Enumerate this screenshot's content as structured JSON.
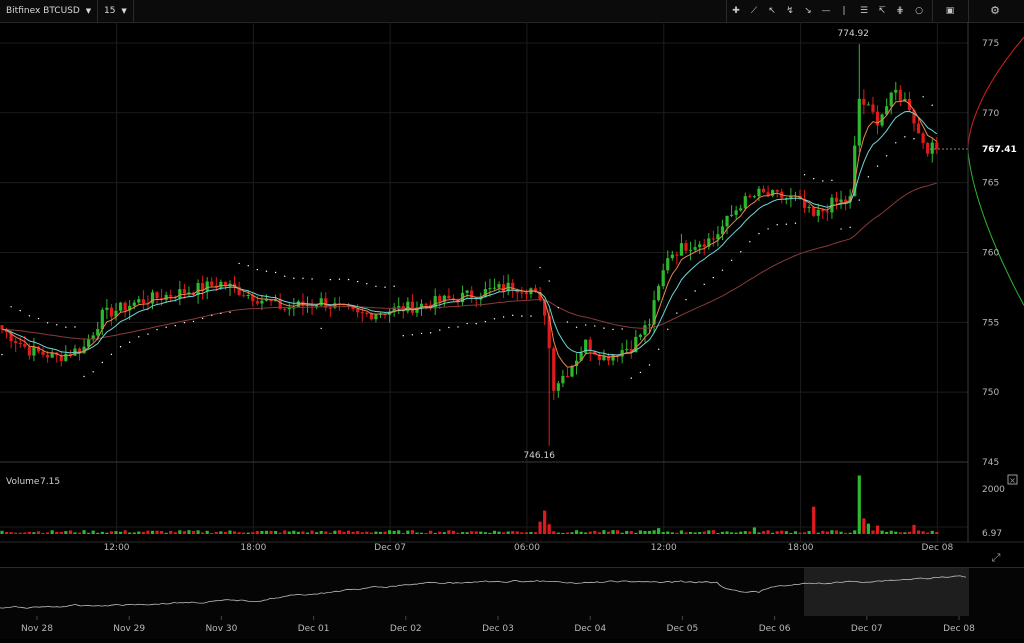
{
  "toolbar": {
    "symbol": "Bitfinex BTCUSD",
    "interval": "15",
    "tools": [
      "crosshair-icon",
      "trend-line-icon",
      "arrow-icon",
      "fork-icon",
      "long-arrow-icon",
      "horizontal-line-icon",
      "vertical-line-icon",
      "fib-lines-icon",
      "fan-icon",
      "pitchfork-icon",
      "circle-icon"
    ]
  },
  "volume_panel": {
    "label": "Volume",
    "value": "7.15",
    "close_icon": "close-icon"
  },
  "expand_icon": "expand-icon",
  "colors": {
    "up": "#2eb82e",
    "down": "#e01b1b",
    "ema_fast": "#e8874a",
    "ema_slow": "#6fd6d6",
    "sma_long": "#8a3a3a",
    "sar": "#ffffff",
    "grid": "#1c1c1c",
    "depth_bid": "#2db52d",
    "depth_ask": "#d32020"
  },
  "chart_data": [
    {
      "type": "candlestick",
      "title": "",
      "y_ticks": [
        745,
        750,
        755,
        760,
        765,
        770,
        775
      ],
      "ylim": [
        745,
        776.5
      ],
      "x_ticks": [
        "12:00",
        "18:00",
        "Dec 07",
        "06:00",
        "12:00",
        "18:00",
        "Dec 08"
      ],
      "last_price": "767.41",
      "high_label": "774.92",
      "low_label": "746.16",
      "anchors": [
        [
          0,
          754.5
        ],
        [
          6,
          753.0
        ],
        [
          12,
          752.5
        ],
        [
          18,
          753.2
        ],
        [
          22,
          755.5
        ],
        [
          30,
          756.5
        ],
        [
          40,
          757.2
        ],
        [
          48,
          757.8
        ],
        [
          54,
          757.0
        ],
        [
          62,
          756.0
        ],
        [
          70,
          756.5
        ],
        [
          78,
          755.5
        ],
        [
          88,
          756.0
        ],
        [
          96,
          756.5
        ],
        [
          106,
          757.2
        ],
        [
          112,
          757.6
        ],
        [
          116,
          757.4
        ],
        [
          119,
          755.8
        ],
        [
          121,
          750.5
        ],
        [
          124,
          751.5
        ],
        [
          128,
          753.5
        ],
        [
          132,
          752.5
        ],
        [
          138,
          753.3
        ],
        [
          142,
          755.0
        ],
        [
          146,
          759.8
        ],
        [
          150,
          760.5
        ],
        [
          156,
          761.0
        ],
        [
          162,
          763.5
        ],
        [
          166,
          764.2
        ],
        [
          170,
          764.0
        ],
        [
          174,
          763.8
        ],
        [
          178,
          762.5
        ],
        [
          182,
          763.5
        ],
        [
          186,
          763.8
        ],
        [
          188,
          771.0
        ],
        [
          192,
          769.5
        ],
        [
          196,
          771.5
        ],
        [
          199,
          770.5
        ],
        [
          201,
          768.5
        ],
        [
          203,
          767.5
        ],
        [
          205,
          767.41
        ]
      ],
      "series": [
        {
          "name": "",
          "type": "line",
          "color": "#e8874a"
        },
        {
          "name": "",
          "type": "line",
          "color": "#6fd6d6"
        },
        {
          "name": "",
          "type": "line",
          "color": "#8a3a3a"
        },
        {
          "name": "",
          "type": "dots",
          "color": "#ffffff"
        }
      ]
    },
    {
      "type": "bar",
      "title": "Volume",
      "y_ticks": [
        2000
      ],
      "last_value": "6.97",
      "spikes": [
        [
          118,
          1.9
        ],
        [
          119,
          3.6
        ],
        [
          120,
          1.5
        ],
        [
          178,
          4.2
        ],
        [
          188,
          9.0
        ],
        [
          189,
          2.4
        ],
        [
          190,
          1.6
        ],
        [
          192,
          1.3
        ],
        [
          200,
          1.4
        ],
        [
          165,
          1.0
        ],
        [
          144,
          0.9
        ]
      ]
    },
    {
      "type": "area",
      "title": "",
      "x_ticks": [
        "Nov 28",
        "Nov 29",
        "Nov 30",
        "Dec 01",
        "Dec 02",
        "Dec 03",
        "Dec 04",
        "Dec 05",
        "Dec 06",
        "Dec 07",
        "Dec 08"
      ]
    }
  ]
}
